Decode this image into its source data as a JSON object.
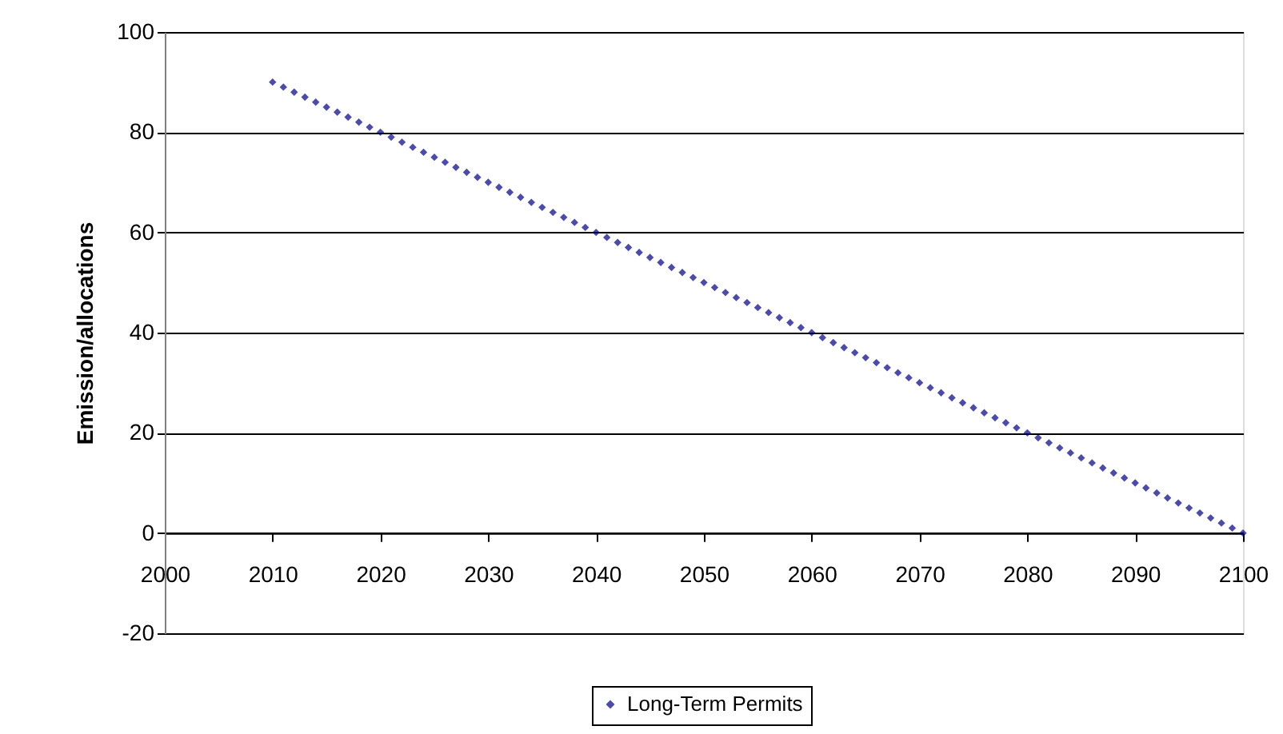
{
  "chart_data": {
    "type": "scatter",
    "ylabel": "Emission/allocations",
    "x": [
      2010,
      2011,
      2012,
      2013,
      2014,
      2015,
      2016,
      2017,
      2018,
      2019,
      2020,
      2021,
      2022,
      2023,
      2024,
      2025,
      2026,
      2027,
      2028,
      2029,
      2030,
      2031,
      2032,
      2033,
      2034,
      2035,
      2036,
      2037,
      2038,
      2039,
      2040,
      2041,
      2042,
      2043,
      2044,
      2045,
      2046,
      2047,
      2048,
      2049,
      2050,
      2051,
      2052,
      2053,
      2054,
      2055,
      2056,
      2057,
      2058,
      2059,
      2060,
      2061,
      2062,
      2063,
      2064,
      2065,
      2066,
      2067,
      2068,
      2069,
      2070,
      2071,
      2072,
      2073,
      2074,
      2075,
      2076,
      2077,
      2078,
      2079,
      2080,
      2081,
      2082,
      2083,
      2084,
      2085,
      2086,
      2087,
      2088,
      2089,
      2090,
      2091,
      2092,
      2093,
      2094,
      2095,
      2096,
      2097,
      2098,
      2099,
      2100
    ],
    "series": [
      {
        "name": "Long-Term Permits",
        "color": "#000080",
        "values": [
          90,
          89,
          88,
          87,
          86,
          85,
          84,
          83,
          82,
          81,
          80,
          79,
          78,
          77,
          76,
          75,
          74,
          73,
          72,
          71,
          70,
          69,
          68,
          67,
          66,
          65,
          64,
          63,
          62,
          61,
          60,
          59,
          58,
          57,
          56,
          55,
          54,
          53,
          52,
          51,
          50,
          49,
          48,
          47,
          46,
          45,
          44,
          43,
          42,
          41,
          40,
          39,
          38,
          37,
          36,
          35,
          34,
          33,
          32,
          31,
          30,
          29,
          28,
          27,
          26,
          25,
          24,
          23,
          22,
          21,
          20,
          19,
          18,
          17,
          16,
          15,
          14,
          13,
          12,
          11,
          10,
          9,
          8,
          7,
          6,
          5,
          4,
          3,
          2,
          1,
          0
        ]
      }
    ],
    "xlim": [
      2000,
      2100
    ],
    "xticks": [
      2000,
      2010,
      2020,
      2030,
      2040,
      2050,
      2060,
      2070,
      2080,
      2090,
      2100
    ],
    "ylim": [
      -20,
      100
    ],
    "yticks": [
      -20,
      0,
      20,
      40,
      60,
      80,
      100
    ],
    "grid": "y",
    "legend": "bottom",
    "marker": "diamond"
  }
}
